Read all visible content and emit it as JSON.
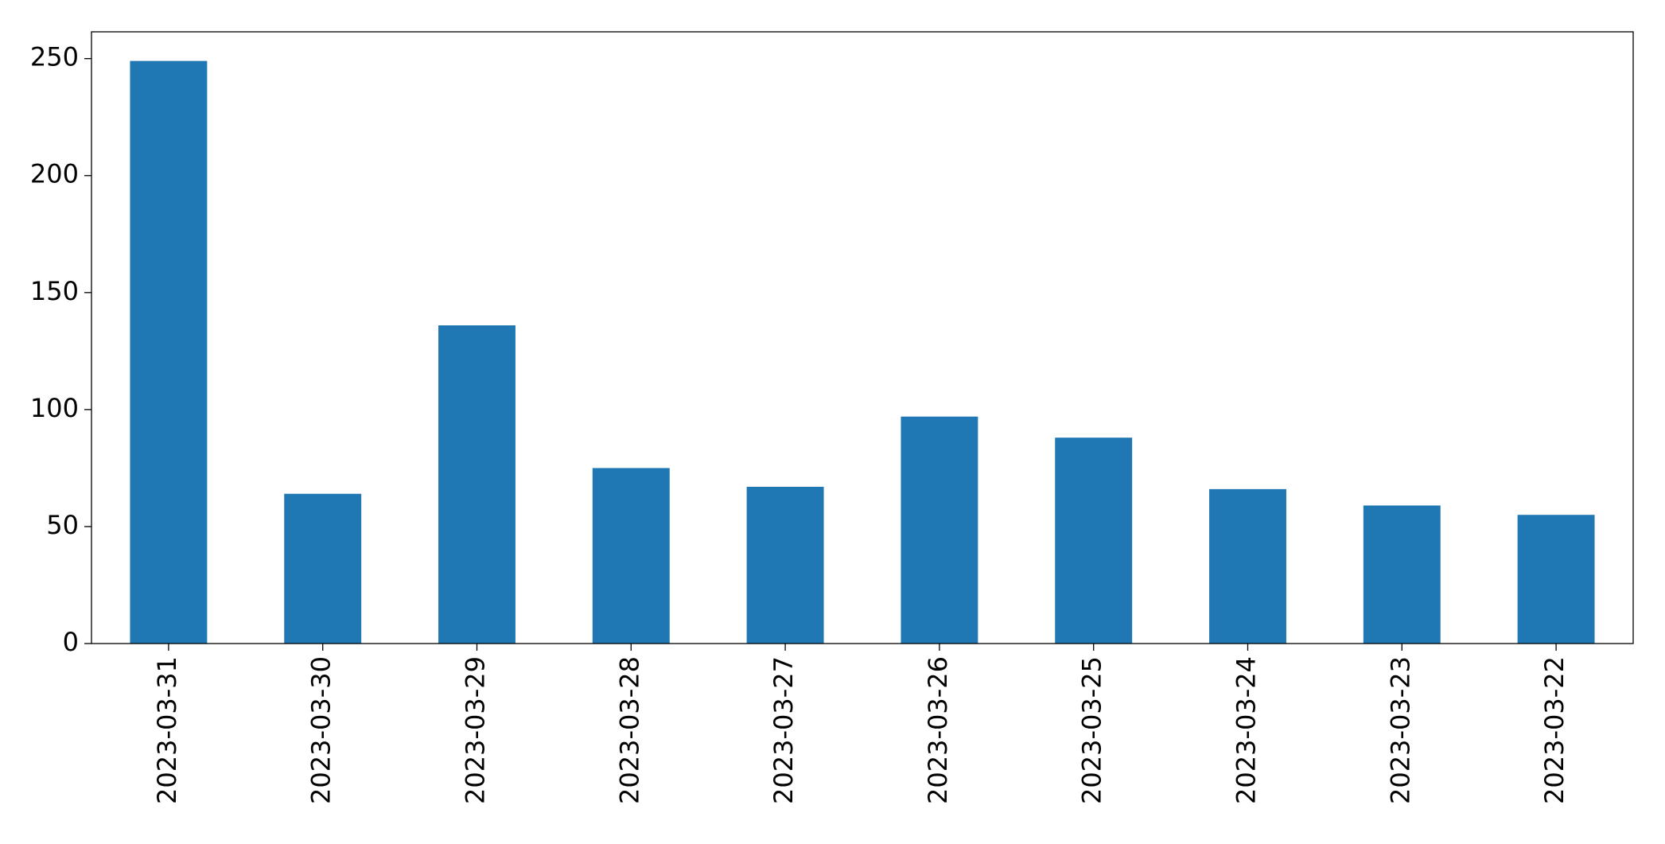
{
  "chart_data": {
    "type": "bar",
    "categories": [
      "2023-03-31",
      "2023-03-30",
      "2023-03-29",
      "2023-03-28",
      "2023-03-27",
      "2023-03-26",
      "2023-03-25",
      "2023-03-24",
      "2023-03-23",
      "2023-03-22"
    ],
    "values": [
      249,
      64,
      136,
      75,
      67,
      97,
      88,
      66,
      59,
      55
    ],
    "color": "#1f77b4",
    "ylim": [
      0,
      261.45
    ],
    "yticks": [
      0,
      50,
      100,
      150,
      200,
      250
    ],
    "grid": false
  }
}
